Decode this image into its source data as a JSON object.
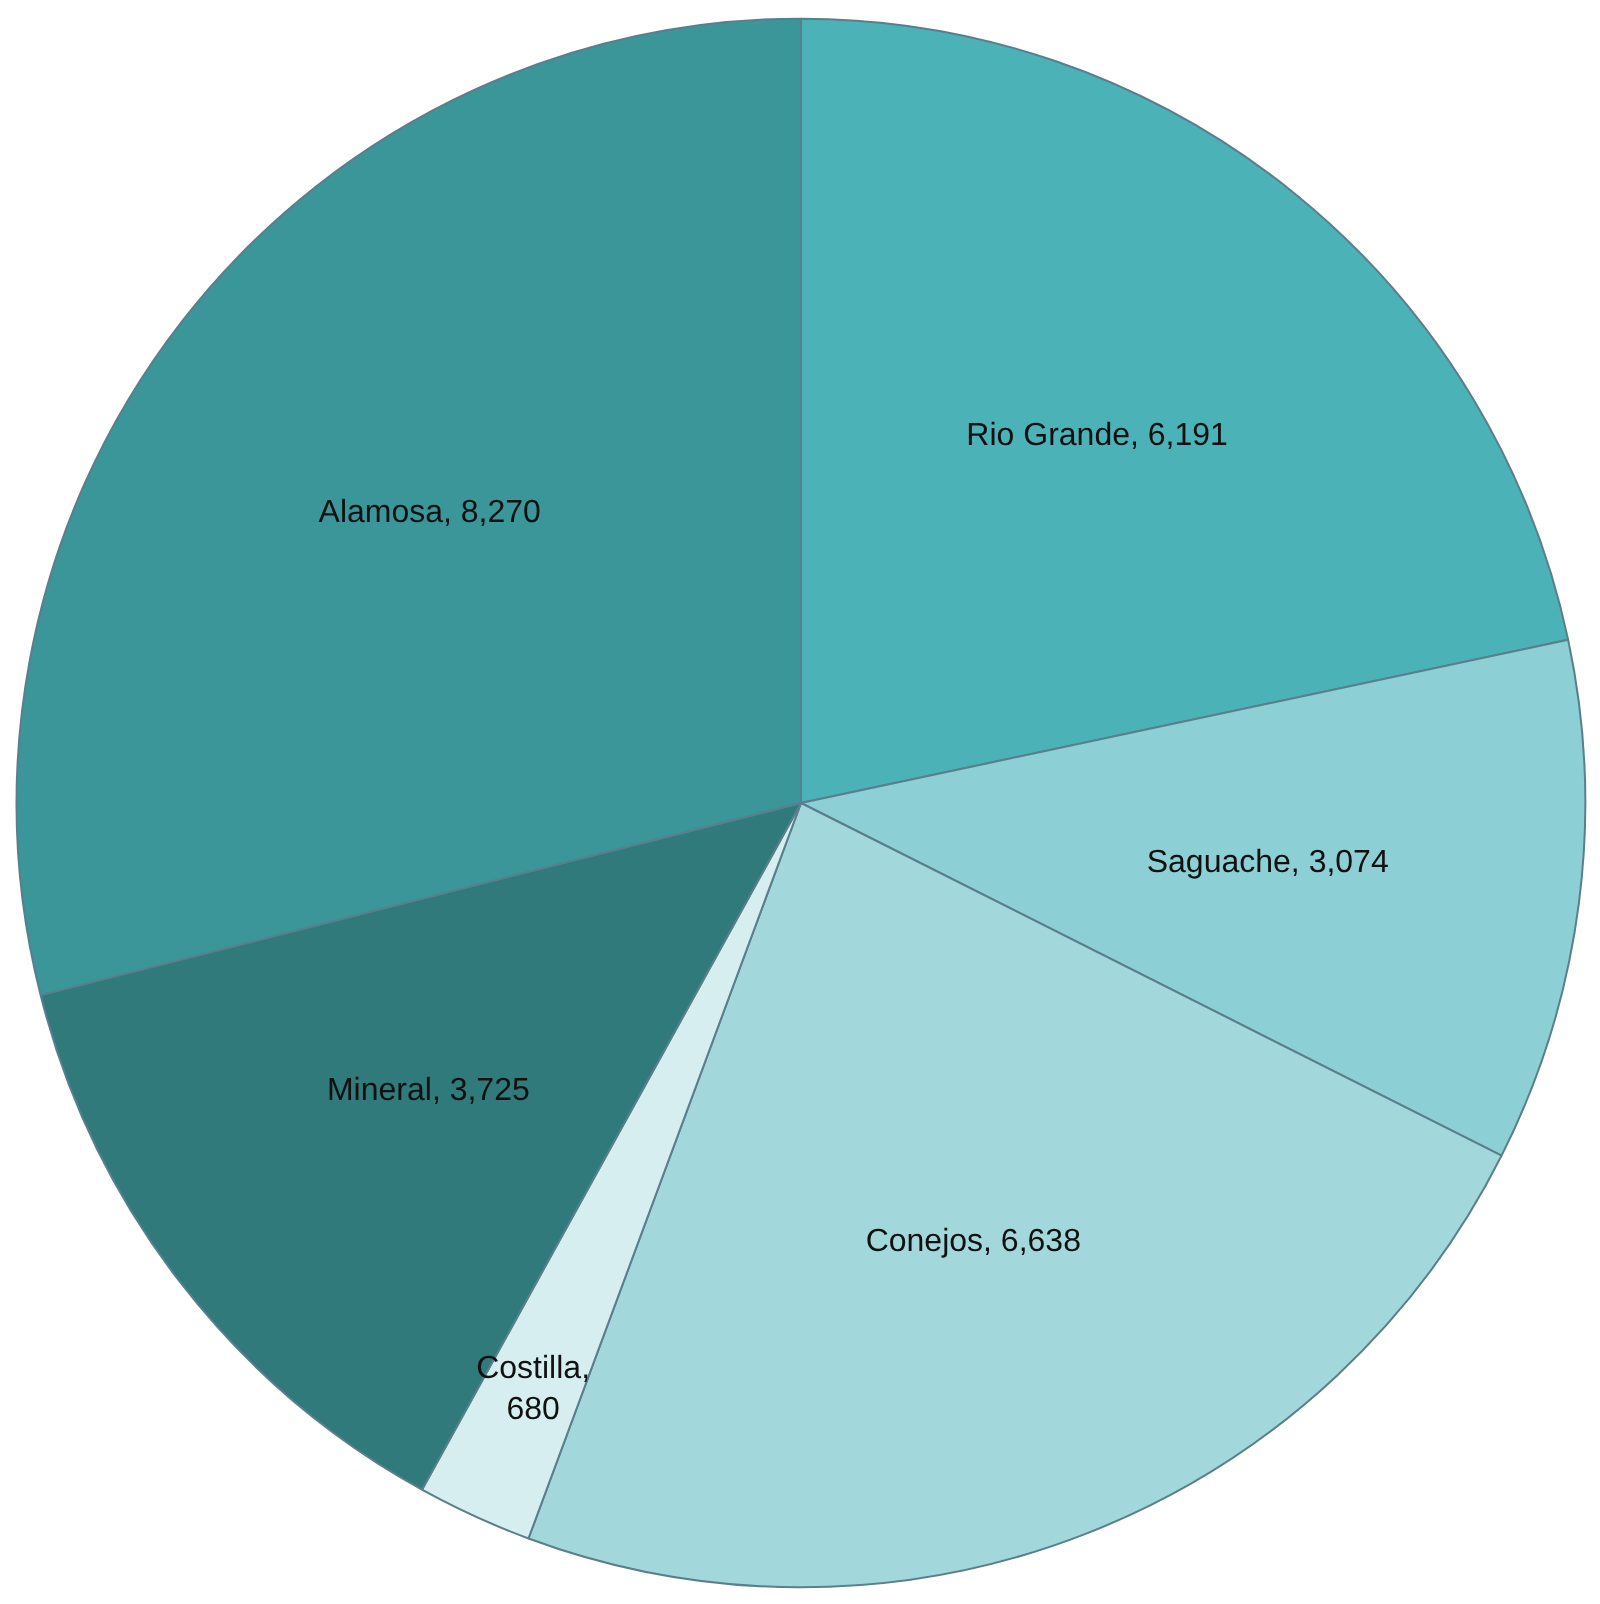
{
  "chart_data": {
    "type": "pie",
    "categories": [
      "Rio Grande",
      "Saguache",
      "Conejos",
      "Costilla",
      "Mineral",
      "Alamosa"
    ],
    "values": [
      6191,
      3074,
      6638,
      680,
      3725,
      8270
    ],
    "colors": [
      "#4bb2b8",
      "#8ccfd4",
      "#a2d8dc",
      "#d6eeef",
      "#317a7b",
      "#3a9699"
    ],
    "value_labels": [
      ", 6,191",
      ", 3,074",
      ", 6,638",
      ",\n680",
      ", 3,725",
      ", 8,270"
    ]
  }
}
